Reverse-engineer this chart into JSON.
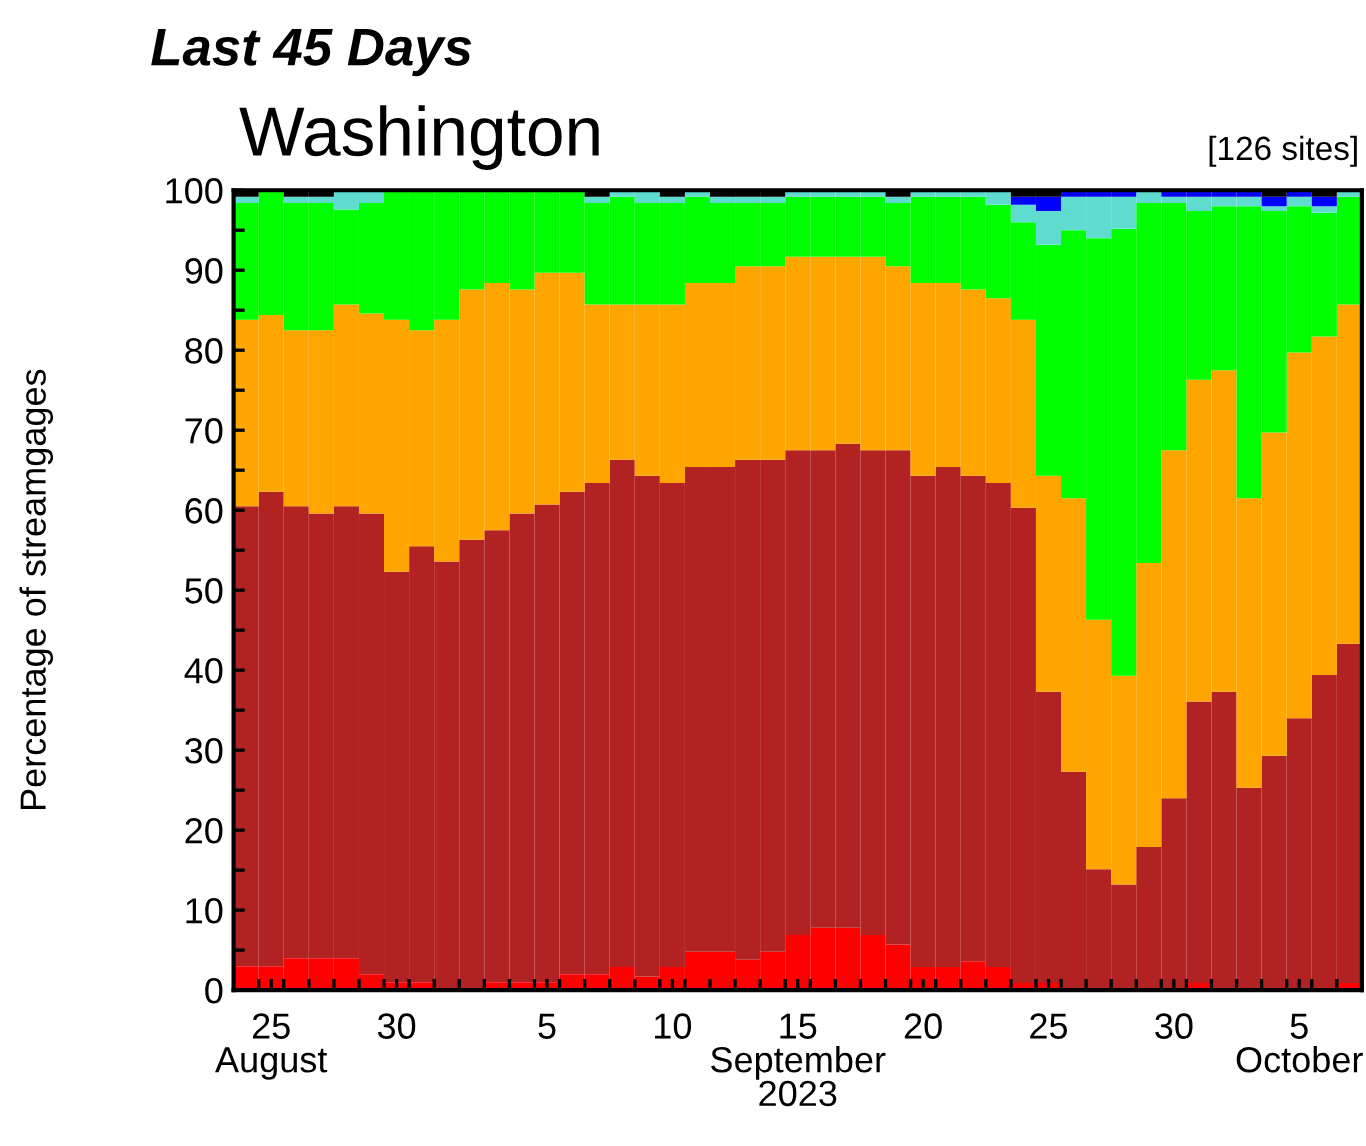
{
  "chart_data": {
    "type": "bar",
    "stacked": true,
    "title": "Last 45 Days",
    "subtitle": "Washington",
    "annotations": [
      "[126 sites]"
    ],
    "ylabel": "Percentage of streamgages",
    "xlabel": "2023",
    "x": [
      "2023-08-24T12:00",
      "2023-08-25T12:00",
      "2023-08-26T12:00",
      "2023-08-27T12:00",
      "2023-08-28T12:00",
      "2023-08-29T12:00",
      "2023-08-30T12:00",
      "2023-08-31T12:00",
      "2023-09-01T12:00",
      "2023-09-02T12:00",
      "2023-09-03T12:00",
      "2023-09-04T12:00",
      "2023-09-05T12:00",
      "2023-09-06T12:00",
      "2023-09-07T12:00",
      "2023-09-08T12:00",
      "2023-09-09T12:00",
      "2023-09-10T12:00",
      "2023-09-11T12:00",
      "2023-09-12T12:00",
      "2023-09-13T12:00",
      "2023-09-14T12:00",
      "2023-09-15T12:00",
      "2023-09-16T12:00",
      "2023-09-17T12:00",
      "2023-09-18T12:00",
      "2023-09-19T12:00",
      "2023-09-20T12:00",
      "2023-09-21T12:00",
      "2023-09-22T12:00",
      "2023-09-23T12:00",
      "2023-09-24T12:00",
      "2023-09-25T12:00",
      "2023-09-26T12:00",
      "2023-09-27T12:00",
      "2023-09-28T12:00",
      "2023-09-29T12:00",
      "2023-09-30T12:00",
      "2023-10-01T12:00",
      "2023-10-02T12:00",
      "2023-10-03T12:00",
      "2023-10-04T12:00",
      "2023-10-05T12:00",
      "2023-10-06T12:00",
      "2023-10-07T12:00"
    ],
    "series": [
      {
        "color": "#ff0000",
        "values": [
          3,
          3,
          4,
          4,
          4,
          2,
          1,
          1,
          0,
          0,
          1,
          1,
          1,
          2,
          2,
          2.9,
          1.7,
          2.9,
          4.8,
          4.8,
          3.8,
          4.8,
          6.9,
          7.8,
          7.8,
          6.9,
          5.7,
          2.9,
          2.9,
          3.6,
          2.9,
          0.9,
          0.9,
          0,
          0,
          0,
          0,
          0,
          0.9,
          0,
          0,
          0,
          0,
          0,
          0.9
        ]
      },
      {
        "color": "#b22222",
        "values": [
          57.5,
          59.3,
          56.5,
          55.6,
          56.5,
          57.6,
          51.3,
          54.5,
          53.6,
          56.3,
          56.5,
          58.6,
          59.7,
          60.3,
          61.4,
          63.4,
          62.6,
          60.5,
          60.6,
          60.6,
          62.5,
          61.5,
          60.6,
          59.7,
          60.5,
          60.6,
          61.8,
          61.4,
          62.5,
          60.7,
          60.5,
          59.4,
          36.4,
          27.3,
          15.1,
          13.2,
          17.9,
          24.0,
          35.2,
          37.3,
          25.3,
          29.3,
          34.0,
          39.4,
          42.4
        ]
      },
      {
        "color": "#ffa500",
        "values": [
          23.3,
          22.1,
          22.0,
          22.9,
          25.2,
          25.0,
          31.5,
          27.0,
          30.2,
          31.3,
          30.9,
          28.0,
          29.0,
          27.4,
          22.3,
          19.4,
          21.4,
          22.3,
          23.0,
          23.0,
          24.2,
          24.2,
          24.2,
          24.2,
          23.4,
          24.2,
          23.0,
          24.1,
          23.0,
          23.3,
          23.1,
          23.5,
          27.0,
          34.2,
          31.2,
          26.1,
          35.5,
          43.5,
          40.2,
          40.2,
          36.2,
          40.4,
          45.7,
          42.3,
          42.4
        ]
      },
      {
        "color": "#00ff00",
        "values": [
          14.6,
          15.6,
          15.9,
          15.9,
          11.9,
          13.8,
          16.2,
          17.5,
          16.2,
          12.4,
          11.6,
          12.4,
          10.3,
          10.3,
          12.7,
          13.5,
          12.7,
          12.7,
          10.8,
          10.0,
          7.9,
          7.9,
          7.5,
          7.5,
          7.5,
          7.5,
          7.9,
          10.8,
          10.8,
          11.6,
          11.7,
          12.2,
          28.9,
          33.5,
          47.7,
          55.9,
          45.0,
          30.9,
          21.1,
          20.5,
          36.5,
          27.7,
          18.3,
          15.5,
          13.5
        ]
      },
      {
        "color": "#5fdcd0",
        "values": [
          0.8,
          0,
          0.8,
          0.8,
          2.4,
          1.6,
          0,
          0,
          0,
          0,
          0,
          0,
          0,
          0,
          0.8,
          0.8,
          1.6,
          0.8,
          0.8,
          0.8,
          0.8,
          0.8,
          0.8,
          0.8,
          0.8,
          0.8,
          0.8,
          0.8,
          0.8,
          0.8,
          1.8,
          2.2,
          4.2,
          4.2,
          5.2,
          4.0,
          1.6,
          0.8,
          1.8,
          1.2,
          1.2,
          0.6,
          1.2,
          0.8,
          0.8
        ]
      },
      {
        "color": "#0000ff",
        "values": [
          0,
          0,
          0,
          0,
          0,
          0,
          0,
          0,
          0,
          0,
          0,
          0,
          0,
          0,
          0,
          0,
          0,
          0,
          0,
          0,
          0,
          0,
          0,
          0,
          0,
          0,
          0,
          0,
          0,
          0,
          0,
          1.0,
          1.8,
          0.8,
          0.8,
          0.8,
          0,
          0.8,
          0.8,
          0.8,
          0.8,
          1.2,
          0.8,
          1.2,
          0
        ]
      },
      {
        "color": "#000000",
        "values": [
          0.8,
          0,
          0.8,
          0.8,
          0,
          0,
          0,
          0,
          0,
          0,
          0,
          0,
          0,
          0,
          0.8,
          0,
          0,
          0.8,
          0,
          0.8,
          0.8,
          0.8,
          0,
          0,
          0,
          0,
          0.8,
          0,
          0,
          0,
          0,
          0.8,
          0.8,
          0,
          0,
          0,
          0,
          0,
          0,
          0,
          0,
          0.8,
          0,
          0.8,
          0
        ]
      }
    ],
    "ylim": [
      0,
      100
    ],
    "yticks": [
      0,
      {
        "value": 5,
        "label": null
      },
      10,
      {
        "value": 15,
        "label": null
      },
      20,
      {
        "value": 25,
        "label": null
      },
      30,
      {
        "value": 35,
        "label": null
      },
      40,
      {
        "value": 45,
        "label": null
      },
      50,
      {
        "value": 55,
        "label": null
      },
      60,
      {
        "value": 65,
        "label": null
      },
      70,
      {
        "value": 75,
        "label": null
      },
      80,
      {
        "value": 85,
        "label": null
      },
      90,
      {
        "value": 95,
        "label": null
      },
      100
    ],
    "xlim": [
      "2023-08-24",
      "2023-10-08"
    ],
    "xticks": [
      {
        "value": "2023-08-25T12:00",
        "label": "25\nAugust"
      },
      {
        "value": "2023-08-30T12:00",
        "label": "30"
      },
      {
        "value": "2023-09-05T12:00",
        "label": "5"
      },
      {
        "value": "2023-09-10T12:00",
        "label": "10"
      },
      {
        "value": "2023-09-15T12:00",
        "label": "15\nSeptember"
      },
      {
        "value": "2023-09-20T12:00",
        "label": "20"
      },
      {
        "value": "2023-09-25T12:00",
        "label": "25"
      },
      {
        "value": "2023-09-30T12:00",
        "label": "30"
      },
      {
        "value": "2023-10-05T12:00",
        "label": "5\nOctober"
      },
      {
        "value": "2023-08-25",
        "label": null
      },
      {
        "value": "2023-08-26",
        "label": null
      },
      {
        "value": "2023-08-27",
        "label": null
      },
      {
        "value": "2023-08-28",
        "label": null
      },
      {
        "value": "2023-08-29",
        "label": null
      },
      {
        "value": "2023-08-30",
        "label": null
      },
      {
        "value": "2023-08-31",
        "label": null
      },
      {
        "value": "2023-09-01",
        "label": null
      },
      {
        "value": "2023-09-02",
        "label": null
      },
      {
        "value": "2023-09-03",
        "label": null
      },
      {
        "value": "2023-09-04",
        "label": null
      },
      {
        "value": "2023-09-05",
        "label": null
      },
      {
        "value": "2023-09-06",
        "label": null
      },
      {
        "value": "2023-09-07",
        "label": null
      },
      {
        "value": "2023-09-08",
        "label": null
      },
      {
        "value": "2023-09-09",
        "label": null
      },
      {
        "value": "2023-09-10",
        "label": null
      },
      {
        "value": "2023-09-11",
        "label": null
      },
      {
        "value": "2023-09-12",
        "label": null
      },
      {
        "value": "2023-09-13",
        "label": null
      },
      {
        "value": "2023-09-14",
        "label": null
      },
      {
        "value": "2023-09-15",
        "label": null
      },
      {
        "value": "2023-09-16",
        "label": null
      },
      {
        "value": "2023-09-17",
        "label": null
      },
      {
        "value": "2023-09-18",
        "label": null
      },
      {
        "value": "2023-09-19",
        "label": null
      },
      {
        "value": "2023-09-20",
        "label": null
      },
      {
        "value": "2023-09-21",
        "label": null
      },
      {
        "value": "2023-09-22",
        "label": null
      },
      {
        "value": "2023-09-23",
        "label": null
      },
      {
        "value": "2023-09-24",
        "label": null
      },
      {
        "value": "2023-09-25",
        "label": null
      },
      {
        "value": "2023-09-26",
        "label": null
      },
      {
        "value": "2023-09-27",
        "label": null
      },
      {
        "value": "2023-09-28",
        "label": null
      },
      {
        "value": "2023-09-29",
        "label": null
      },
      {
        "value": "2023-09-30",
        "label": null
      },
      {
        "value": "2023-10-01",
        "label": null
      },
      {
        "value": "2023-10-02",
        "label": null
      },
      {
        "value": "2023-10-03",
        "label": null
      },
      {
        "value": "2023-10-04",
        "label": null
      },
      {
        "value": "2023-10-05",
        "label": null
      },
      {
        "value": "2023-10-06",
        "label": null
      },
      {
        "value": "2023-10-07",
        "label": null
      }
    ]
  }
}
